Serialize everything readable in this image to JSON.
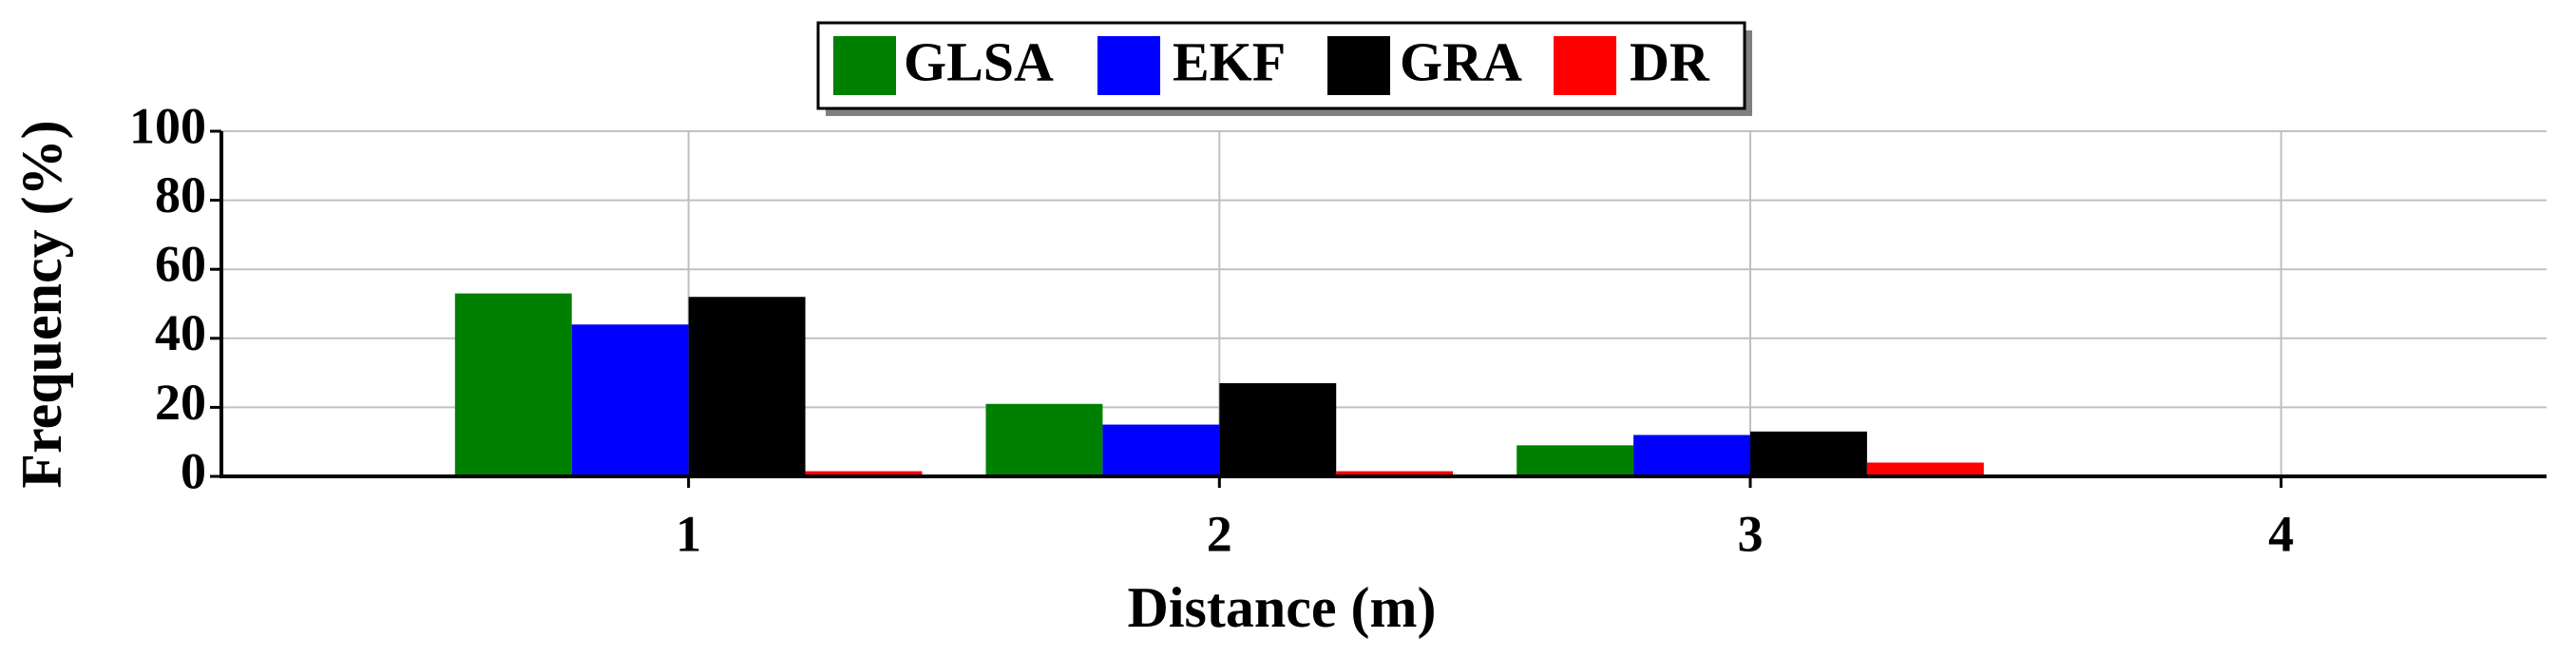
{
  "chart_data": {
    "type": "bar",
    "x_label": "Distance (m)",
    "y_label": "Frequency (%)",
    "x": [
      1,
      2,
      3,
      4
    ],
    "series": [
      {
        "name": "GLSA",
        "color": "#008000",
        "values": [
          53,
          21,
          9,
          0
        ]
      },
      {
        "name": "EKF",
        "color": "#0000ff",
        "values": [
          44,
          15,
          12,
          0
        ]
      },
      {
        "name": "GRA",
        "color": "#000000",
        "values": [
          52,
          27,
          13,
          0
        ]
      },
      {
        "name": "DR",
        "color": "#ff0000",
        "values": [
          1.5,
          1.5,
          4,
          0
        ]
      }
    ],
    "xlim": [
      0.12,
      4.5
    ],
    "xticks": [
      1,
      2,
      3,
      4
    ],
    "ylim": [
      0,
      100
    ],
    "yticks": [
      0,
      20,
      40,
      60,
      80,
      100
    ],
    "grid": true,
    "legend": "top"
  }
}
